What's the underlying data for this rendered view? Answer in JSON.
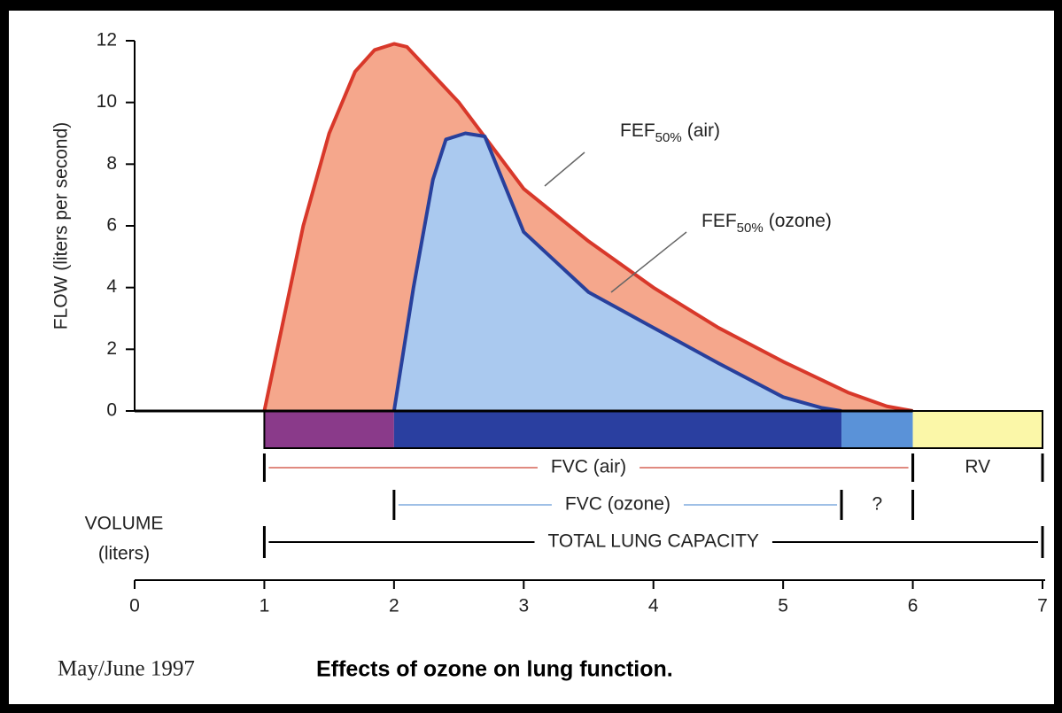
{
  "chart_data": {
    "type": "area",
    "y_label": "FLOW (liters per second)",
    "x_label": [
      "VOLUME",
      "(liters)"
    ],
    "xlim": [
      0,
      7
    ],
    "xticks": [
      0,
      1,
      2,
      3,
      4,
      5,
      6,
      7
    ],
    "ylim": [
      0,
      12
    ],
    "yticks": [
      0,
      2,
      4,
      6,
      8,
      10,
      12
    ],
    "grid": false,
    "series": [
      {
        "name": "air",
        "color": "#d8382a",
        "fill": "#f5a78c",
        "x": [
          1,
          1.1,
          1.3,
          1.5,
          1.7,
          1.85,
          2,
          2.1,
          2.5,
          3,
          3.5,
          4,
          4.5,
          5,
          5.5,
          5.8,
          6
        ],
        "values": [
          0,
          2,
          6,
          9,
          11,
          11.7,
          11.9,
          11.8,
          10,
          7.2,
          5.5,
          4,
          2.7,
          1.6,
          0.6,
          0.15,
          0
        ]
      },
      {
        "name": "ozone",
        "color": "#28409c",
        "fill": "#aac9ef",
        "x": [
          2,
          2.15,
          2.3,
          2.4,
          2.55,
          2.7,
          3,
          3.5,
          4,
          4.5,
          5,
          5.3,
          5.45
        ],
        "values": [
          0,
          4,
          7.5,
          8.8,
          9,
          8.9,
          5.8,
          3.85,
          2.7,
          1.55,
          0.45,
          0.1,
          0
        ]
      }
    ],
    "annotations": [
      {
        "text": "FEF",
        "sub": "50%",
        "suffix": "(air)"
      },
      {
        "text": "FEF",
        "sub": "50%",
        "suffix": "(ozone)"
      }
    ],
    "volume_bar": [
      {
        "from": 1,
        "to": 2,
        "color": "#8a3a8a"
      },
      {
        "from": 2,
        "to": 5.45,
        "color": "#2a3fa0"
      },
      {
        "from": 5.45,
        "to": 6,
        "color": "#5a92d8"
      },
      {
        "from": 6,
        "to": 7,
        "color": "#fbf7a8"
      }
    ],
    "spans": [
      {
        "label": "FVC (air)",
        "from": 1,
        "to": 6,
        "color": "#e08a80"
      },
      {
        "label": "FVC (ozone)",
        "from": 2,
        "to": 5.45,
        "color": "#9fc0e6"
      },
      {
        "label": "?",
        "from": 5.45,
        "to": 6,
        "color": "#ffffff"
      },
      {
        "label": "RV",
        "from": 6,
        "to": 7,
        "color": "#ffffff"
      },
      {
        "label": "TOTAL LUNG CAPACITY",
        "from": 1,
        "to": 7,
        "color": "#000000"
      }
    ],
    "source": "May/June 1997",
    "caption": "Effects of ozone on lung function."
  }
}
